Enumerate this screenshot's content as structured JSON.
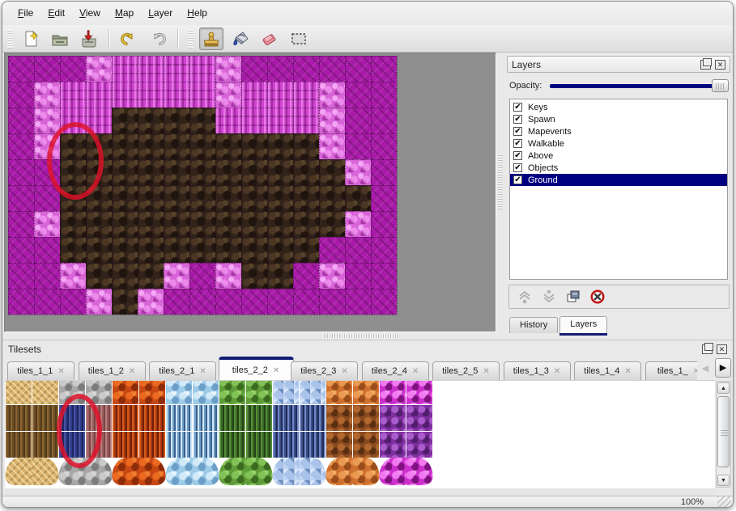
{
  "menu": {
    "items": [
      "File",
      "Edit",
      "View",
      "Map",
      "Layer",
      "Help"
    ]
  },
  "toolbar": {
    "buttons": [
      "new-file",
      "open-file",
      "save-file",
      "undo",
      "redo",
      "stamp-tool",
      "fill-tool",
      "eraser-tool",
      "select-tool"
    ],
    "selected": "stamp-tool"
  },
  "map": {
    "cols": 15,
    "rows": 10,
    "tile_size": 32,
    "legend": {
      "M": "dark-magenta-ground",
      "P": "pink-bark",
      "F": "pink-rough",
      "B": "dark-brown-rock"
    },
    "grid": [
      "MMMFPPPPFMMMMMM",
      "MFPPPPPPFPPPFMM",
      "MFPPBBBBPPPPFMM",
      "MFBBBBBBBBBBFMM",
      "MMBBBBBBBBBBBFM",
      "MMBBBBBBBBBBBBM",
      "MFBBBBBBBBBBBFM",
      "MMBBBBBBBBBBMMM",
      "MMFBBBFMFBBMFMM",
      "MMMFBFMMMMMMMMM"
    ],
    "annotation": {
      "shape": "ellipse",
      "color": "#df122a"
    }
  },
  "layers_panel": {
    "title": "Layers",
    "opacity_label": "Opacity:",
    "opacity_value": 100,
    "layers": [
      {
        "label": "Keys",
        "checked": true,
        "selected": false
      },
      {
        "label": "Spawn",
        "checked": true,
        "selected": false
      },
      {
        "label": "Mapevents",
        "checked": true,
        "selected": false
      },
      {
        "label": "Walkable",
        "checked": true,
        "selected": false
      },
      {
        "label": "Above",
        "checked": true,
        "selected": false
      },
      {
        "label": "Objects",
        "checked": true,
        "selected": false
      },
      {
        "label": "Ground",
        "checked": true,
        "selected": true
      }
    ],
    "tool_buttons": [
      "raise-layer",
      "lower-layer",
      "duplicate-layer",
      "delete-layer"
    ],
    "tabs": [
      {
        "label": "History",
        "active": false
      },
      {
        "label": "Layers",
        "active": true
      }
    ],
    "selection_color": "#000080",
    "opacity_track_color": "#00077e"
  },
  "tilesets_panel": {
    "title": "Tilesets",
    "tabs": [
      {
        "label": "tiles_1_1",
        "active": false
      },
      {
        "label": "tiles_1_2",
        "active": false
      },
      {
        "label": "tiles_2_1",
        "active": false
      },
      {
        "label": "tiles_2_2",
        "active": true
      },
      {
        "label": "tiles_2_3",
        "active": false
      },
      {
        "label": "tiles_2_4",
        "active": false
      },
      {
        "label": "tiles_2_5",
        "active": false
      },
      {
        "label": "tiles_1_3",
        "active": false
      },
      {
        "label": "tiles_1_4",
        "active": false
      },
      {
        "label": "tiles_1_",
        "active": false
      }
    ],
    "tab_close_glyph": "✕",
    "grid": {
      "col_groups": [
        "straw",
        "stone",
        "lava",
        "ice",
        "vine",
        "crystal",
        "pebble",
        "web"
      ],
      "row_kinds": [
        "top",
        "fiber",
        "fiber",
        "blob"
      ],
      "selected_cell": {
        "col": 2,
        "row": 1,
        "row_span": 2
      }
    },
    "annotation": {
      "shape": "ellipse",
      "color": "#df122a"
    }
  },
  "scrollbar": {
    "up_glyph": "▲",
    "down_glyph": "▼",
    "tab_left_glyph": "◀",
    "tab_right_glyph": "▶"
  },
  "status_bar": {
    "zoom": "100%"
  },
  "checkbox_glyph": "✔"
}
